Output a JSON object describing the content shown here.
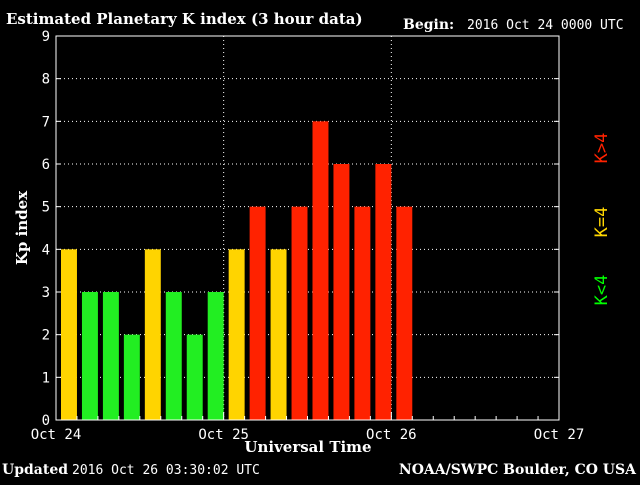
{
  "header": {
    "title": "Estimated Planetary K index (3 hour data)",
    "begin_label": "Begin:",
    "begin_value": "2016 Oct 24 0000 UTC"
  },
  "footer": {
    "updated_label": "Updated",
    "updated_value": "2016 Oct 26 03:30:02 UTC",
    "source": "NOAA/SWPC Boulder, CO USA"
  },
  "legend": [
    {
      "label": "K<4",
      "color": "#00ff00"
    },
    {
      "label": "K=4",
      "color": "#ffd700"
    },
    {
      "label": "K>4",
      "color": "#ff2200"
    }
  ],
  "colors": {
    "low": "#22ee22",
    "equal": "#ffd400",
    "high": "#ff2200",
    "background": "#000000",
    "axis": "#ffffff"
  },
  "chart_data": {
    "type": "bar",
    "title": "Estimated Planetary K index (3 hour data)",
    "xlabel": "Universal Time",
    "ylabel": "Kp index",
    "ylim": [
      0,
      9
    ],
    "xlim_bins": 24,
    "bin_hours": 3,
    "y_ticks": [
      "0",
      "1",
      "2",
      "3",
      "4",
      "5",
      "6",
      "7",
      "8",
      "9"
    ],
    "x_ticks": [
      {
        "label": "Oct 24",
        "bin": 0
      },
      {
        "label": "Oct 25",
        "bin": 8
      },
      {
        "label": "Oct 26",
        "bin": 16
      },
      {
        "label": "Oct 27",
        "bin": 24
      }
    ],
    "grid": true,
    "values": [
      4,
      3,
      3,
      2,
      4,
      3,
      2,
      3,
      4,
      5,
      4,
      5,
      7,
      6,
      5,
      6,
      5
    ]
  }
}
